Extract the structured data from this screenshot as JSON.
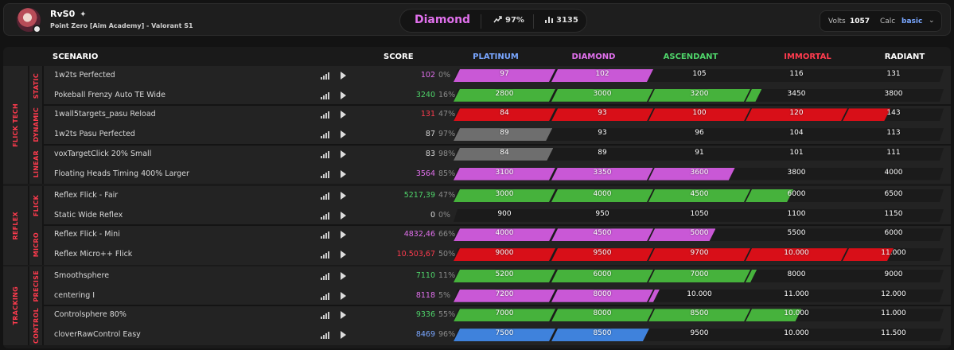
{
  "header": {
    "username": "RvS0",
    "sparkle": "✦",
    "subtitle": "Point Zero [Aim Academy] - Valorant S1",
    "rank": "Diamond",
    "progress": "97%",
    "energy": "3135",
    "volts_label": "Volts",
    "volts_value": "1057",
    "calc_label": "Calc",
    "calc_value": "basic"
  },
  "table_headers": {
    "scenario": "SCENARIO",
    "score": "SCORE",
    "ranks": [
      "PLATINUM",
      "DIAMOND",
      "ASCENDANT",
      "IMMORTAL",
      "RADIANT"
    ]
  },
  "colors": {
    "accent": "#ff3b4e",
    "platinum": "#79a6ff",
    "diamond": "#e070ec",
    "ascendant": "#4fd46a",
    "immortal": "#ff3b4e",
    "radiant": "#ffffff",
    "bar_purple": "#c958d6",
    "bar_green": "#46b23c",
    "bar_red": "#d80f18",
    "bar_gray": "#6e6e6e",
    "bar_blue": "#3f82dc"
  },
  "icons": [
    "trend-up-icon",
    "bar-chart-icon",
    "chevron-down-icon",
    "signal-icon",
    "play-icon"
  ],
  "categories": [
    {
      "name": "FLICK TECH",
      "subcategories": [
        {
          "name": "STATIC",
          "scenarios": [
            {
              "name": "1w2ts Perfected",
              "score": "102",
              "score_color": "#e070ec",
              "percent": "0%",
              "thresholds": [
                "97",
                "102",
                "105",
                "116",
                "131"
              ],
              "progress": 2.0,
              "bar_color": "#c958d6"
            },
            {
              "name": "Pokeball Frenzy Auto TE Wide",
              "score": "3240",
              "score_color": "#4fd46a",
              "percent": "16%",
              "thresholds": [
                "2800",
                "3000",
                "3200",
                "3450",
                "3800"
              ],
              "progress": 3.16,
              "bar_color": "#46b23c"
            }
          ]
        },
        {
          "name": "DYNAMIC",
          "scenarios": [
            {
              "name": "1wall5targets_pasu Reload",
              "score": "131",
              "score_color": "#ff3b4e",
              "percent": "47%",
              "thresholds": [
                "84",
                "93",
                "100",
                "120",
                "143"
              ],
              "progress": 4.47,
              "bar_color": "#d80f18"
            },
            {
              "name": "1w2ts Pasu Perfected",
              "score": "87",
              "score_color": "#d8d8d8",
              "percent": "97%",
              "thresholds": [
                "89",
                "93",
                "96",
                "104",
                "113"
              ],
              "progress": 0.97,
              "bar_color": "#6e6e6e"
            }
          ]
        },
        {
          "name": "LINEAR",
          "scenarios": [
            {
              "name": "voxTargetClick 20% Small",
              "score": "83",
              "score_color": "#d8d8d8",
              "percent": "98%",
              "thresholds": [
                "84",
                "89",
                "91",
                "101",
                "111"
              ],
              "progress": 0.98,
              "bar_color": "#6e6e6e"
            },
            {
              "name": "Floating Heads Timing 400% Larger",
              "score": "3564",
              "score_color": "#e070ec",
              "percent": "85%",
              "thresholds": [
                "3100",
                "3350",
                "3600",
                "3800",
                "4000"
              ],
              "progress": 2.85,
              "bar_color": "#c958d6"
            }
          ]
        }
      ]
    },
    {
      "name": "REFLEX",
      "subcategories": [
        {
          "name": "FLICK",
          "scenarios": [
            {
              "name": "Reflex Flick - Fair",
              "score": "5217,39",
              "score_color": "#4fd46a",
              "percent": "47%",
              "thresholds": [
                "3000",
                "4000",
                "4500",
                "6000",
                "6500"
              ],
              "progress": 3.47,
              "bar_color": "#46b23c"
            },
            {
              "name": "Static Wide Reflex",
              "score": "0",
              "score_color": "#d8d8d8",
              "percent": "0%",
              "thresholds": [
                "900",
                "950",
                "1050",
                "1100",
                "1150"
              ],
              "progress": 0.0,
              "bar_color": "#6e6e6e"
            }
          ]
        },
        {
          "name": "MICRO",
          "scenarios": [
            {
              "name": "Reflex Flick - Mini",
              "score": "4832,46",
              "score_color": "#e070ec",
              "percent": "66%",
              "thresholds": [
                "4000",
                "4500",
                "5000",
                "5500",
                "6000"
              ],
              "progress": 2.66,
              "bar_color": "#c958d6"
            },
            {
              "name": "Reflex Micro++ Flick",
              "score": "10.503,67",
              "score_color": "#ff3b4e",
              "percent": "50%",
              "thresholds": [
                "9000",
                "9500",
                "9700",
                "10.000",
                "11.000"
              ],
              "progress": 4.5,
              "bar_color": "#d80f18"
            }
          ]
        }
      ]
    },
    {
      "name": "TRACKING",
      "subcategories": [
        {
          "name": "PRECISE",
          "scenarios": [
            {
              "name": "Smoothsphere",
              "score": "7110",
              "score_color": "#4fd46a",
              "percent": "11%",
              "thresholds": [
                "5200",
                "6000",
                "7000",
                "8000",
                "9000"
              ],
              "progress": 3.11,
              "bar_color": "#46b23c"
            },
            {
              "name": "centering I",
              "score": "8118",
              "score_color": "#e070ec",
              "percent": "5%",
              "thresholds": [
                "7200",
                "8000",
                "10.000",
                "11.000",
                "12.000"
              ],
              "progress": 2.05,
              "bar_color": "#c958d6"
            }
          ]
        },
        {
          "name": "CONTROL",
          "scenarios": [
            {
              "name": "Controlsphere 80%",
              "score": "9336",
              "score_color": "#4fd46a",
              "percent": "55%",
              "thresholds": [
                "7000",
                "8000",
                "8500",
                "10.000",
                "11.000"
              ],
              "progress": 3.55,
              "bar_color": "#46b23c"
            },
            {
              "name": "cloverRawControl Easy",
              "score": "8469",
              "score_color": "#79a6ff",
              "percent": "96%",
              "thresholds": [
                "7500",
                "8500",
                "9500",
                "10.000",
                "11.500"
              ],
              "progress": 1.96,
              "bar_color": "#3f82dc"
            }
          ]
        }
      ]
    }
  ]
}
